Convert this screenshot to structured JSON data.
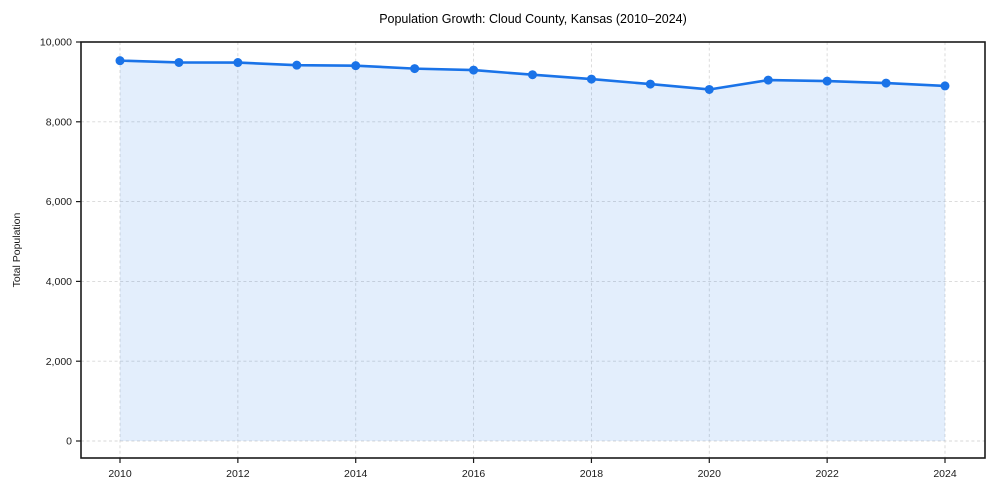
{
  "chart_data": {
    "type": "area",
    "title": "Population Growth: Cloud County, Kansas (2010–2024)",
    "xlabel": "",
    "ylabel": "Total Population",
    "series": [
      {
        "name": "Total Population",
        "x": [
          2010,
          2011,
          2012,
          2013,
          2014,
          2015,
          2016,
          2017,
          2018,
          2019,
          2020,
          2021,
          2022,
          2023,
          2024
        ],
        "values": [
          9533,
          9487,
          9485,
          9419,
          9407,
          9333,
          9296,
          9180,
          9070,
          8945,
          8810,
          9045,
          9020,
          8970,
          8900
        ]
      }
    ],
    "xlim": [
      2010,
      2024
    ],
    "ylim": [
      0,
      10000
    ],
    "xticks": [
      2010,
      2012,
      2014,
      2016,
      2018,
      2020,
      2022,
      2024
    ],
    "xtick_labels": [
      "2010",
      "2012",
      "2014",
      "2016",
      "2018",
      "2020",
      "2022",
      "2024"
    ],
    "yticks": [
      0,
      2000,
      4000,
      6000,
      8000,
      10000
    ],
    "ytick_labels": [
      "0",
      "2,000",
      "4,000",
      "6,000",
      "8,000",
      "10,000"
    ],
    "grid": true,
    "grid_style": "dashed",
    "legend": "none",
    "marker": "circle",
    "colors": {
      "line": "#1a73e8",
      "marker": "#1a73e8",
      "area_fill": "rgba(26,115,232,0.12)",
      "grid": "#d7d7d7",
      "frame": "#1a1a1a",
      "tick_text": "#1a1a1a",
      "title_text": "#000000",
      "background": "#ffffff"
    }
  }
}
